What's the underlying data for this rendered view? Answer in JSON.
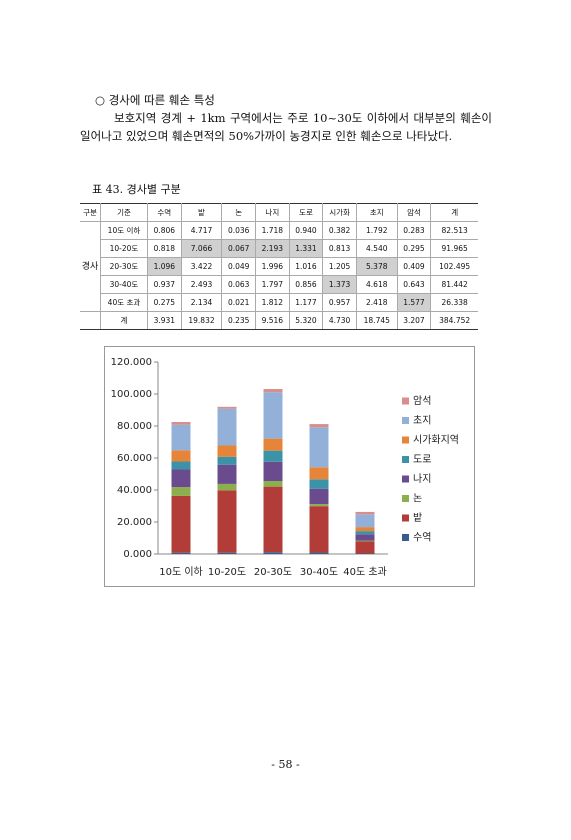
{
  "heading": "○ 경사에 따른 훼손 특성",
  "paragraph": "보호지역 경계 + 1km 구역에서는 주로 10~30도 이하에서 대부분의 훼손이 일어나고 있었으며 훼손면적의 50%가까이 농경지로 인한 훼손으로 나타났다.",
  "table": {
    "caption": "표 43. 경사별 구분",
    "header": [
      "구분",
      "기준",
      "수역",
      "밭",
      "논",
      "나지",
      "도로",
      "시가화",
      "초지",
      "암석",
      "계"
    ],
    "group_label": "경사",
    "rows": [
      [
        "10도 이하",
        "0.806",
        "4.717",
        "0.036",
        "1.718",
        "0.940",
        "0.382",
        "1.792",
        "0.283",
        "82.513"
      ],
      [
        "10-20도",
        "0.818",
        "7.066",
        "0.067",
        "2.193",
        "1.331",
        "0.813",
        "4.540",
        "0.295",
        "91.965"
      ],
      [
        "20-30도",
        "1.096",
        "3.422",
        "0.049",
        "1.996",
        "1.016",
        "1.205",
        "5.378",
        "0.409",
        "102.495"
      ],
      [
        "30-40도",
        "0.937",
        "2.493",
        "0.063",
        "1.797",
        "0.856",
        "1.373",
        "4.618",
        "0.643",
        "81.442"
      ],
      [
        "40도 초과",
        "0.275",
        "2.134",
        "0.021",
        "1.812",
        "1.177",
        "0.957",
        "2.418",
        "1.577",
        "26.338"
      ],
      [
        "계",
        "3.931",
        "19.832",
        "0.235",
        "9.516",
        "5.320",
        "4.730",
        "18.745",
        "3.207",
        "384.752"
      ]
    ]
  },
  "chart_data": {
    "type": "stacked_bar",
    "categories": [
      "10도 이하",
      "10-20도",
      "20-30도",
      "30-40도",
      "40도 초과"
    ],
    "series": [
      {
        "name": "수역",
        "color": "#375d8c",
        "values": [
          0.8,
          0.8,
          1.1,
          0.9,
          0.3
        ]
      },
      {
        "name": "밭",
        "color": "#b23c38",
        "values": [
          35.5,
          39,
          41,
          29,
          7.5
        ]
      },
      {
        "name": "논",
        "color": "#8cae4c",
        "values": [
          5.5,
          4,
          3.5,
          1.3,
          0.5
        ]
      },
      {
        "name": "나지",
        "color": "#6a4c8e",
        "values": [
          11,
          12,
          12,
          9.5,
          4
        ]
      },
      {
        "name": "도로",
        "color": "#3c93a8",
        "values": [
          5,
          5,
          7,
          6,
          2
        ]
      },
      {
        "name": "시가화지역",
        "color": "#e6843a",
        "values": [
          7,
          7,
          7.5,
          7.5,
          2.5
        ]
      },
      {
        "name": "초지",
        "color": "#93b1d8",
        "values": [
          16,
          23,
          29,
          25,
          8
        ]
      },
      {
        "name": "암석",
        "color": "#d98e8c",
        "values": [
          1.7,
          1.2,
          2,
          2,
          1.5
        ]
      }
    ],
    "ylim": [
      0,
      120
    ],
    "yticks": [
      {
        "value": 0,
        "label": "0.000"
      },
      {
        "value": 20,
        "label": "20.000"
      },
      {
        "value": 40,
        "label": "40.000"
      },
      {
        "value": 60,
        "label": "60.000"
      },
      {
        "value": 80,
        "label": "80.000"
      },
      {
        "value": 100,
        "label": "100.000"
      },
      {
        "value": 120,
        "label": "120.000"
      }
    ],
    "legend": "right"
  },
  "page_number": "- 58 -"
}
